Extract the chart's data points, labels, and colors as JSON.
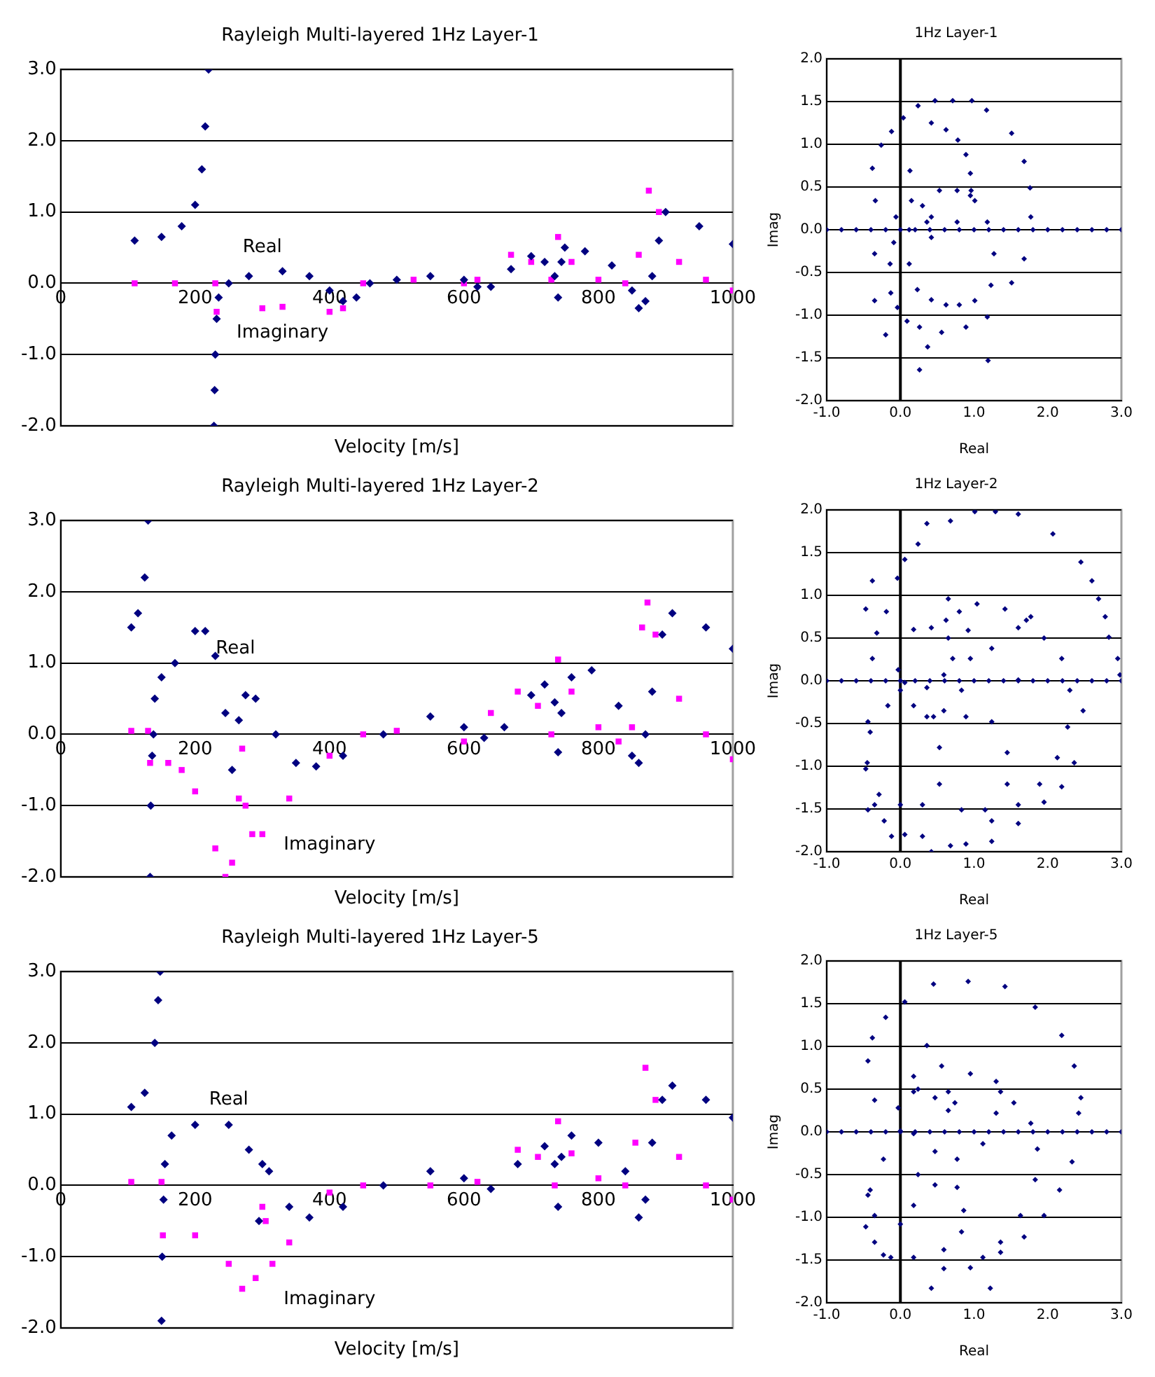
{
  "chart_data": [
    {
      "type": "scatter",
      "title": "Rayleigh Multi-layered 1Hz Layer-1",
      "xlabel": "Velocity [m/s]",
      "xlim": [
        0,
        1000
      ],
      "xticks": [
        0,
        200,
        400,
        600,
        800,
        1000
      ],
      "ylim": [
        -2,
        3
      ],
      "yticks": [
        {
          "value": -2,
          "label": "-2.0"
        },
        {
          "value": -1,
          "label": "-1.0"
        },
        {
          "value": 0,
          "label": "0.0"
        },
        {
          "value": 1,
          "label": "1.0"
        },
        {
          "value": 2,
          "label": "2.0"
        },
        {
          "value": 3,
          "label": "3.0"
        }
      ],
      "grid": "y",
      "legend": false,
      "series": [
        {
          "name": "Real",
          "color": "#000080",
          "marker": "diamond",
          "x": [
            110,
            150,
            180,
            200,
            210,
            215,
            220,
            228,
            229,
            230,
            232,
            235,
            250,
            280,
            330,
            370,
            400,
            420,
            440,
            460,
            500,
            550,
            600,
            620,
            640,
            670,
            700,
            720,
            735,
            740,
            745,
            750,
            780,
            820,
            850,
            860,
            870,
            880,
            890,
            900,
            950,
            1000
          ],
          "values": [
            0.6,
            0.65,
            0.8,
            1.1,
            1.6,
            2.2,
            3.0,
            -2.0,
            -1.5,
            -1.0,
            -0.5,
            -0.2,
            0.0,
            0.1,
            0.17,
            0.1,
            -0.1,
            -0.25,
            -0.2,
            0.0,
            0.05,
            0.1,
            0.05,
            -0.05,
            -0.05,
            0.2,
            0.38,
            0.3,
            0.1,
            -0.2,
            0.3,
            0.5,
            0.45,
            0.25,
            -0.1,
            -0.35,
            -0.25,
            0.1,
            0.6,
            1.0,
            0.8,
            0.55
          ]
        },
        {
          "name": "Imaginary",
          "color": "#ff00ff",
          "marker": "square",
          "x": [
            110,
            170,
            230,
            232,
            300,
            330,
            400,
            420,
            450,
            525,
            600,
            620,
            670,
            700,
            730,
            740,
            760,
            800,
            840,
            860,
            875,
            890,
            920,
            960,
            1000
          ],
          "values": [
            0,
            0,
            0,
            -0.4,
            -0.35,
            -0.33,
            -0.4,
            -0.35,
            0.0,
            0.05,
            0.0,
            0.05,
            0.4,
            0.3,
            0.05,
            0.65,
            0.3,
            0.05,
            0.0,
            0.4,
            1.3,
            1.0,
            0.3,
            0.05,
            -0.1
          ]
        }
      ]
    },
    {
      "type": "scatter",
      "title": "1Hz Layer-1",
      "xlabel": "Real",
      "ylabel": "Imag",
      "ref_lines": [
        {
          "axis": "x",
          "value": 0
        }
      ],
      "xlim": [
        -1,
        3
      ],
      "xticks": [
        {
          "value": -1,
          "label": "-1.0"
        },
        {
          "value": 0,
          "label": "0.0"
        },
        {
          "value": 1,
          "label": "1.0"
        },
        {
          "value": 2,
          "label": "2.0"
        },
        {
          "value": 3,
          "label": "3.0"
        }
      ],
      "ylim": [
        -2,
        2
      ],
      "yticks": [
        {
          "value": -2,
          "label": "-2.0"
        },
        {
          "value": -1.5,
          "label": "-1.5"
        },
        {
          "value": -1,
          "label": "-1.0"
        },
        {
          "value": -0.5,
          "label": "-0.5"
        },
        {
          "value": 0,
          "label": "0.0"
        },
        {
          "value": 0.5,
          "label": "0.5"
        },
        {
          "value": 1,
          "label": "1.0"
        },
        {
          "value": 1.5,
          "label": "1.5"
        },
        {
          "value": 2,
          "label": "2.0"
        }
      ],
      "grid": "y",
      "legend": false,
      "series": [
        {
          "color": "#000080",
          "marker": "diamond",
          "x": [
            -1,
            -0.8,
            -0.6,
            -0.4,
            -0.2,
            0,
            0.2,
            0.4,
            0.6,
            0.8,
            1,
            1.2,
            1.4,
            1.6,
            1.8,
            2,
            2.2,
            2.4,
            2.6,
            2.8,
            3,
            0.71,
            0.47,
            0.24,
            0.04,
            -0.12,
            -0.26,
            -0.38,
            -0.34,
            -0.35,
            -0.35,
            -0.2,
            0.37,
            0.97,
            1.17,
            1.51,
            1.68,
            1.76,
            1.77,
            1.68,
            1.51,
            1.18,
            0.89,
            0.56,
            0.26,
            0.09,
            -0.04,
            -0.13,
            1.19,
            0.26,
            0.42,
            0.62,
            0.78,
            0.89,
            0.95,
            0.96,
            1.01,
            1.18,
            1.27,
            1.23,
            1.01,
            0.8,
            0.62,
            0.42,
            0.23,
            0.13,
            0.15,
            0.3,
            0.36,
            0.12,
            -0.06,
            -0.09,
            -0.14,
            0.12,
            0.42,
            0.77,
            0.95,
            0.77,
            0.53,
            0.42
          ],
          "values": [
            0,
            0,
            0,
            0,
            0,
            0,
            0,
            0,
            0,
            0,
            0,
            0,
            0,
            0,
            0,
            0,
            0,
            0,
            0,
            0,
            0,
            1.51,
            1.51,
            1.45,
            1.31,
            1.15,
            0.99,
            0.72,
            0.34,
            -0.28,
            -0.83,
            -1.23,
            -1.37,
            1.51,
            1.4,
            1.13,
            0.8,
            0.49,
            0.15,
            -0.34,
            -0.62,
            -1.02,
            -1.14,
            -1.2,
            -1.14,
            -1.07,
            -0.91,
            -0.74,
            -1.53,
            -1.64,
            1.25,
            1.17,
            1.05,
            0.88,
            0.66,
            0.46,
            0.34,
            0.09,
            -0.28,
            -0.65,
            -0.83,
            -0.88,
            -0.88,
            -0.82,
            -0.7,
            0.69,
            0.34,
            0.28,
            0.09,
            0,
            0.15,
            -0.15,
            -0.4,
            -0.4,
            -0.09,
            0.09,
            0.4,
            0.46,
            0.46,
            0.15
          ]
        }
      ]
    },
    {
      "type": "scatter",
      "title": "Rayleigh Multi-layered 1Hz Layer-2",
      "xlabel": "Velocity [m/s]",
      "xlim": [
        0,
        1000
      ],
      "xticks": [
        0,
        200,
        400,
        600,
        800,
        1000
      ],
      "ylim": [
        -2,
        3
      ],
      "yticks": [
        {
          "value": -2,
          "label": "-2.0"
        },
        {
          "value": -1,
          "label": "-1.0"
        },
        {
          "value": 0,
          "label": "0.0"
        },
        {
          "value": 1,
          "label": "1.0"
        },
        {
          "value": 2,
          "label": "2.0"
        },
        {
          "value": 3,
          "label": "3.0"
        }
      ],
      "grid": "y",
      "legend": false,
      "series": [
        {
          "name": "Real",
          "color": "#000080",
          "marker": "diamond",
          "x": [
            105,
            115,
            125,
            130,
            133,
            134,
            136,
            138,
            140,
            150,
            170,
            200,
            215,
            230,
            245,
            255,
            265,
            275,
            290,
            320,
            350,
            380,
            420,
            480,
            550,
            600,
            630,
            660,
            700,
            720,
            735,
            740,
            745,
            760,
            790,
            830,
            850,
            860,
            870,
            880,
            895,
            910,
            960,
            1000
          ],
          "values": [
            1.5,
            1.7,
            2.2,
            3.0,
            -2.0,
            -1.0,
            -0.3,
            0.0,
            0.5,
            0.8,
            1.0,
            1.45,
            1.45,
            1.1,
            0.3,
            -0.5,
            0.2,
            0.55,
            0.5,
            0.0,
            -0.4,
            -0.45,
            -0.3,
            0.0,
            0.25,
            0.1,
            -0.05,
            0.1,
            0.55,
            0.7,
            0.45,
            -0.25,
            0.3,
            0.8,
            0.9,
            0.4,
            -0.3,
            -0.4,
            0.0,
            0.6,
            1.4,
            1.7,
            1.5,
            1.2
          ]
        },
        {
          "name": "Imaginary",
          "color": "#ff00ff",
          "marker": "square",
          "x": [
            105,
            130,
            133,
            160,
            180,
            200,
            230,
            245,
            255,
            265,
            270,
            275,
            285,
            300,
            340,
            400,
            450,
            500,
            600,
            640,
            680,
            710,
            730,
            740,
            760,
            800,
            830,
            850,
            865,
            873,
            885,
            920,
            960,
            1000
          ],
          "values": [
            0.05,
            0.05,
            -0.4,
            -0.4,
            -0.5,
            -0.8,
            -1.6,
            -2.0,
            -1.8,
            -0.9,
            -0.2,
            -1.0,
            -1.4,
            -1.4,
            -0.9,
            -0.3,
            0.0,
            0.05,
            -0.1,
            0.3,
            0.6,
            0.4,
            0.0,
            1.05,
            0.6,
            0.1,
            -0.1,
            0.1,
            1.5,
            1.85,
            1.4,
            0.5,
            0.0,
            -0.35
          ]
        }
      ]
    },
    {
      "type": "scatter",
      "title": "1Hz Layer-2",
      "xlabel": "Real",
      "ylabel": "Imag",
      "ref_lines": [
        {
          "axis": "x",
          "value": 0
        }
      ],
      "xlim": [
        -1,
        3
      ],
      "xticks": [
        {
          "value": -1,
          "label": "-1.0"
        },
        {
          "value": 0,
          "label": "0.0"
        },
        {
          "value": 1,
          "label": "1.0"
        },
        {
          "value": 2,
          "label": "2.0"
        },
        {
          "value": 3,
          "label": "3.0"
        }
      ],
      "ylim": [
        -2,
        2
      ],
      "yticks": [
        {
          "value": -2,
          "label": "-2.0"
        },
        {
          "value": -1.5,
          "label": "-1.5"
        },
        {
          "value": -1,
          "label": "-1.0"
        },
        {
          "value": -0.5,
          "label": "-0.5"
        },
        {
          "value": 0,
          "label": "0.0"
        },
        {
          "value": 0.5,
          "label": "0.5"
        },
        {
          "value": 1,
          "label": "1.0"
        },
        {
          "value": 1.5,
          "label": "1.5"
        },
        {
          "value": 2,
          "label": "2.0"
        }
      ],
      "grid": "y",
      "legend": false,
      "series": [
        {
          "color": "#000080",
          "marker": "diamond",
          "x": [
            -1,
            -0.8,
            -0.6,
            -0.4,
            -0.2,
            0,
            0.2,
            0.4,
            0.6,
            0.8,
            1,
            1.2,
            1.4,
            1.6,
            1.8,
            2,
            2.2,
            2.4,
            2.6,
            2.8,
            3,
            1.01,
            1.29,
            1.6,
            2.07,
            2.45,
            2.6,
            2.69,
            2.78,
            2.83,
            2.95,
            2.98,
            2.48,
            2.36,
            2.19,
            1.95,
            1.6,
            1.24,
            0.89,
            0.68,
            0.3,
            0.06,
            -0.22,
            -0.35,
            -0.45,
            -0.44,
            -0.38,
            -0.32,
            -0.19,
            -0.04,
            0.06,
            0.24,
            0.36,
            0.68,
            -0.38,
            -0.47,
            0.65,
            1.04,
            1.42,
            1.71,
            1.95,
            2.19,
            2.3,
            2.27,
            2.13,
            1.89,
            1.6,
            1.15,
            0.83,
            0.8,
            0.62,
            0.18,
            0.42,
            0.65,
            0.71,
            0.59,
            0.36,
            0.06,
            -0.03,
            0.92,
            0.95,
            0.83,
            0.59,
            0.36,
            0.18,
            0,
            -0.17,
            -0.41,
            -0.47,
            -0.29,
            0,
            0.3,
            0.53,
            0.53,
            0.45,
            0.89,
            1.24,
            1.45,
            1.45,
            1.24,
            0.42,
            -0.12,
            -0.44,
            1.6,
            1.24,
            1.6,
            1.77
          ],
          "values": [
            0,
            0,
            0,
            0,
            0,
            0,
            0,
            0,
            0,
            0,
            0,
            0,
            0,
            0,
            0,
            0,
            0,
            0,
            0,
            0,
            0,
            1.98,
            1.98,
            1.95,
            1.72,
            1.39,
            1.17,
            0.96,
            0.75,
            0.51,
            0.26,
            0.07,
            -0.35,
            -0.96,
            -1.24,
            -1.42,
            -1.67,
            -1.88,
            -1.91,
            -1.93,
            -1.82,
            -1.8,
            -1.64,
            -1.45,
            -0.96,
            -0.48,
            0.26,
            0.56,
            0.81,
            1.2,
            1.42,
            1.6,
            1.84,
            1.87,
            1.17,
            0.84,
            0.96,
            0.9,
            0.84,
            0.71,
            0.5,
            0.26,
            -0.11,
            -0.54,
            -0.9,
            -1.21,
            -1.45,
            -1.51,
            -1.51,
            0.81,
            0.71,
            0.6,
            0.62,
            0.5,
            0.26,
            0.07,
            -0.08,
            -0.02,
            0.13,
            0.59,
            0.26,
            -0.11,
            -0.35,
            -0.42,
            -0.29,
            -0.11,
            -0.29,
            -0.6,
            -1.03,
            -1.33,
            -1.45,
            -1.45,
            -1.21,
            -0.78,
            -0.42,
            -0.42,
            -0.48,
            -0.84,
            -1.21,
            -1.64,
            -2.0,
            -1.82,
            -1.51,
            0.01,
            0.38,
            0.62,
            0.75
          ]
        }
      ]
    },
    {
      "type": "scatter",
      "title": "Rayleigh Multi-layered 1Hz Layer-5",
      "xlabel": "Velocity [m/s]",
      "xlim": [
        0,
        1000
      ],
      "xticks": [
        0,
        200,
        400,
        600,
        800,
        1000
      ],
      "ylim": [
        -2,
        3
      ],
      "yticks": [
        {
          "value": -2,
          "label": "-2.0"
        },
        {
          "value": -1,
          "label": "-1.0"
        },
        {
          "value": 0,
          "label": "0.0"
        },
        {
          "value": 1,
          "label": "1.0"
        },
        {
          "value": 2,
          "label": "2.0"
        },
        {
          "value": 3,
          "label": "3.0"
        }
      ],
      "grid": "y",
      "legend": false,
      "series": [
        {
          "name": "Real",
          "color": "#000080",
          "marker": "diamond",
          "x": [
            105,
            125,
            140,
            145,
            148,
            150,
            151,
            153,
            155,
            165,
            200,
            250,
            280,
            295,
            300,
            310,
            340,
            370,
            420,
            480,
            550,
            600,
            640,
            680,
            720,
            735,
            740,
            745,
            760,
            800,
            840,
            860,
            870,
            880,
            895,
            910,
            960,
            1000
          ],
          "values": [
            1.1,
            1.3,
            2.0,
            2.6,
            3.0,
            -1.9,
            -1.0,
            -0.2,
            0.3,
            0.7,
            0.85,
            0.85,
            0.5,
            -0.5,
            0.3,
            0.2,
            -0.3,
            -0.45,
            -0.3,
            0.0,
            0.2,
            0.1,
            -0.05,
            0.3,
            0.55,
            0.3,
            -0.3,
            0.4,
            0.7,
            0.6,
            0.2,
            -0.45,
            -0.2,
            0.6,
            1.2,
            1.4,
            1.2,
            0.95
          ]
        },
        {
          "name": "Imaginary",
          "color": "#ff00ff",
          "marker": "square",
          "x": [
            105,
            150,
            152,
            200,
            250,
            270,
            290,
            300,
            305,
            315,
            340,
            400,
            450,
            550,
            620,
            680,
            710,
            735,
            740,
            760,
            800,
            840,
            855,
            870,
            885,
            920,
            960,
            1000
          ],
          "values": [
            0.05,
            0.05,
            -0.7,
            -0.7,
            -1.1,
            -1.45,
            -1.3,
            -0.3,
            -0.5,
            -1.1,
            -0.8,
            -0.1,
            0.0,
            0.0,
            0.05,
            0.5,
            0.4,
            0.0,
            0.9,
            0.45,
            0.1,
            0.0,
            0.6,
            1.65,
            1.2,
            0.4,
            0.0,
            -0.2
          ]
        }
      ]
    },
    {
      "type": "scatter",
      "title": "1Hz Layer-5",
      "xlabel": "Real",
      "ylabel": "Imag",
      "ref_lines": [
        {
          "axis": "x",
          "value": 0
        }
      ],
      "xlim": [
        -1,
        3
      ],
      "xticks": [
        {
          "value": -1,
          "label": "-1.0"
        },
        {
          "value": 0,
          "label": "0.0"
        },
        {
          "value": 1,
          "label": "1.0"
        },
        {
          "value": 2,
          "label": "2.0"
        },
        {
          "value": 3,
          "label": "3.0"
        }
      ],
      "ylim": [
        -2,
        2
      ],
      "yticks": [
        {
          "value": -2,
          "label": "-2.0"
        },
        {
          "value": -1.5,
          "label": "-1.5"
        },
        {
          "value": -1,
          "label": "-1.0"
        },
        {
          "value": -0.5,
          "label": "-0.5"
        },
        {
          "value": 0,
          "label": "0.0"
        },
        {
          "value": 0.5,
          "label": "0.5"
        },
        {
          "value": 1,
          "label": "1.0"
        },
        {
          "value": 1.5,
          "label": "1.5"
        },
        {
          "value": 2,
          "label": "2.0"
        }
      ],
      "grid": "y",
      "legend": false,
      "series": [
        {
          "color": "#000080",
          "marker": "diamond",
          "x": [
            -1,
            -0.8,
            -0.6,
            -0.4,
            -0.2,
            0,
            0.2,
            0.4,
            0.6,
            0.8,
            1,
            1.2,
            1.4,
            1.6,
            1.8,
            2,
            2.2,
            2.4,
            2.6,
            2.8,
            3,
            0.92,
            1.42,
            1.83,
            2.19,
            2.36,
            2.45,
            2.42,
            2.33,
            2.16,
            1.95,
            1.68,
            1.36,
            0.95,
            0.59,
            0.42,
            0.45,
            0.06,
            -0.2,
            -0.38,
            -0.44,
            -0.35,
            -0.44,
            -0.35,
            -0.13,
            1.22,
            0.56,
            0.95,
            1.3,
            1.54,
            1.77,
            1.86,
            1.83,
            1.63,
            1.36,
            1.12,
            0.36,
            0.18,
            0.24,
            0.47,
            0.65,
            0.74,
            0.65,
            0.18,
            -0.03,
            0,
            0.18,
            0.47,
            0.77,
            1.12,
            1.36,
            1.3,
            -0.23,
            -0.41,
            -0.35,
            0,
            0.18,
            0.24,
            0.47,
            0.77,
            0.86,
            0.83,
            0.59,
            0.18,
            -0.23,
            -0.47
          ],
          "values": [
            0,
            0,
            0,
            0,
            0,
            0,
            0,
            0,
            0,
            0,
            0,
            0,
            0,
            0,
            0,
            0,
            0,
            0,
            0,
            0,
            0,
            1.76,
            1.7,
            1.46,
            1.13,
            0.77,
            0.4,
            0.22,
            -0.35,
            -0.68,
            -0.98,
            -1.23,
            -1.41,
            -1.59,
            -1.6,
            -1.83,
            1.73,
            1.52,
            1.34,
            1.1,
            0.83,
            0.37,
            -0.74,
            -1.29,
            -1.47,
            -1.83,
            0.77,
            0.68,
            0.59,
            0.34,
            0.1,
            -0.2,
            -0.56,
            -0.98,
            -1.29,
            -1.47,
            1.01,
            0.65,
            0.5,
            0.4,
            0.25,
            0.34,
            0.47,
            0.47,
            0.28,
            0.01,
            -0.02,
            -0.23,
            -0.32,
            -0.14,
            0.47,
            0.22,
            -0.32,
            -0.68,
            -0.98,
            -1.08,
            -0.86,
            -0.5,
            -0.62,
            -0.65,
            -0.92,
            -1.17,
            -1.38,
            -1.47,
            -1.44,
            -1.11
          ]
        }
      ]
    }
  ]
}
